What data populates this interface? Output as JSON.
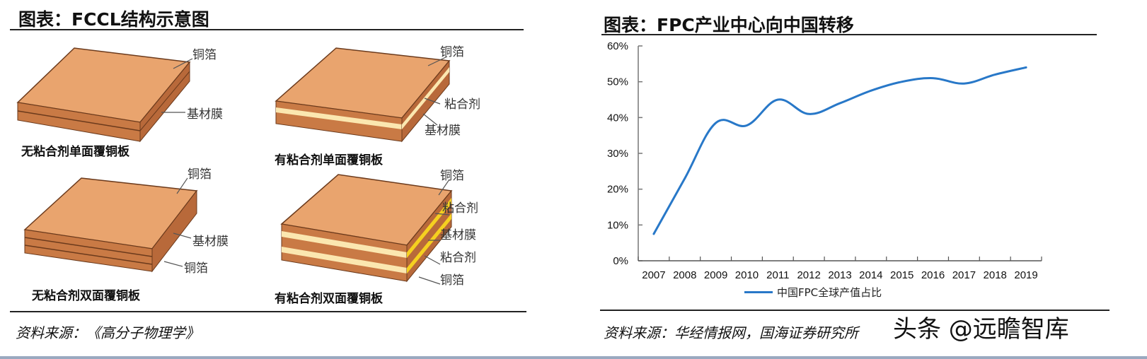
{
  "left_panel": {
    "title": "图表：FCCL结构示意图",
    "source": "资料来源：《高分子物理学》",
    "diagrams": [
      {
        "caption": "无粘合剂单面覆铜板",
        "labels": [
          "铜箔",
          "基材膜"
        ],
        "layers": [
          "copper",
          "substrate"
        ]
      },
      {
        "caption": "有粘合剂单面覆铜板",
        "labels": [
          "铜箔",
          "粘合剂",
          "基材膜"
        ],
        "layers": [
          "copper",
          "adhesive",
          "substrate"
        ]
      },
      {
        "caption": "无粘合剂双面覆铜板",
        "labels": [
          "铜箔",
          "基材膜",
          "铜箔"
        ],
        "layers": [
          "copper",
          "substrate",
          "copper"
        ]
      },
      {
        "caption": "有粘合剂双面覆铜板",
        "labels": [
          "铜箔",
          "粘合剂",
          "基材膜",
          "粘合剂",
          "铜箔"
        ],
        "layers": [
          "copper",
          "adhesive",
          "substrate",
          "adhesive",
          "copper"
        ]
      }
    ],
    "colors": {
      "copper_top": "#e9a46e",
      "copper_side": "#c97a45",
      "substrate": "#b8693a",
      "adhesive": "#fbe7b0",
      "adhesive_bright": "#f5d020",
      "edge": "#6b3a1c"
    }
  },
  "right_panel": {
    "title": "图表：FPC产业中心向中国转移",
    "source": "资料来源：华经情报网，国海证券研究所",
    "legend_label": "中国FPC全球产值占比",
    "line_color": "#2878c8"
  },
  "watermark": "头条 @远瞻智库",
  "chart_data": {
    "type": "line",
    "title": "图表：FPC产业中心向中国转移",
    "xlabel": "",
    "ylabel": "",
    "categories": [
      "2007",
      "2008",
      "2009",
      "2010",
      "2011",
      "2012",
      "2013",
      "2014",
      "2015",
      "2016",
      "2017",
      "2018",
      "2019"
    ],
    "series": [
      {
        "name": "中国FPC全球产值占比",
        "values": [
          7.5,
          23.0,
          38.5,
          37.8,
          45.0,
          41.0,
          44.0,
          47.5,
          50.0,
          51.0,
          49.5,
          52.0,
          54.0
        ],
        "color": "#2878c8",
        "smooth": true
      }
    ],
    "y_ticks": [
      "0%",
      "10%",
      "20%",
      "30%",
      "40%",
      "50%",
      "60%"
    ],
    "ylim": [
      0,
      60
    ],
    "y_unit": "%",
    "grid": false,
    "legend_position": "bottom"
  }
}
